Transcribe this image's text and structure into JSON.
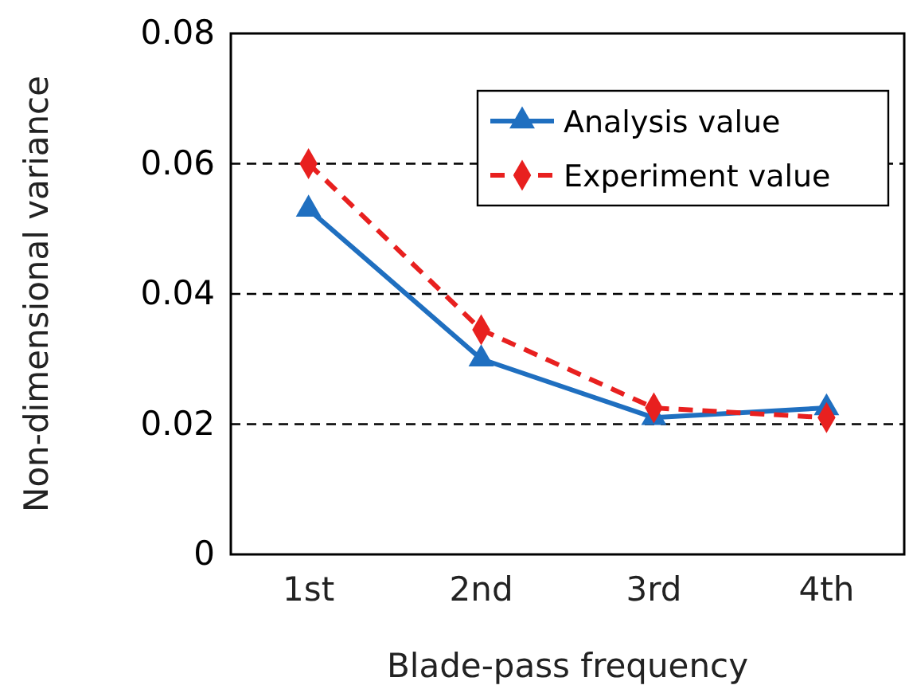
{
  "chart_data": {
    "type": "line",
    "xlabel": "Blade-pass frequency",
    "ylabel": "Non-dimensional variance",
    "categories": [
      "1st",
      "2nd",
      "3rd",
      "4th"
    ],
    "ylim": [
      0,
      0.08
    ],
    "yticks": [
      {
        "value": 0,
        "label": "0"
      },
      0.02,
      0.04,
      0.06,
      0.08
    ],
    "grid": "y",
    "legend": "top right",
    "series": [
      {
        "name": "Analysis value",
        "color": "#1f6fc0",
        "values": [
          0.053,
          0.03,
          0.021,
          0.0225
        ],
        "marker": "triangle",
        "line_style": "solid"
      },
      {
        "name": "Experiment value",
        "color": "#e8201f",
        "values": [
          0.06,
          0.0345,
          0.0225,
          0.021
        ],
        "marker": "diamond",
        "line_style": "dashed"
      }
    ]
  }
}
